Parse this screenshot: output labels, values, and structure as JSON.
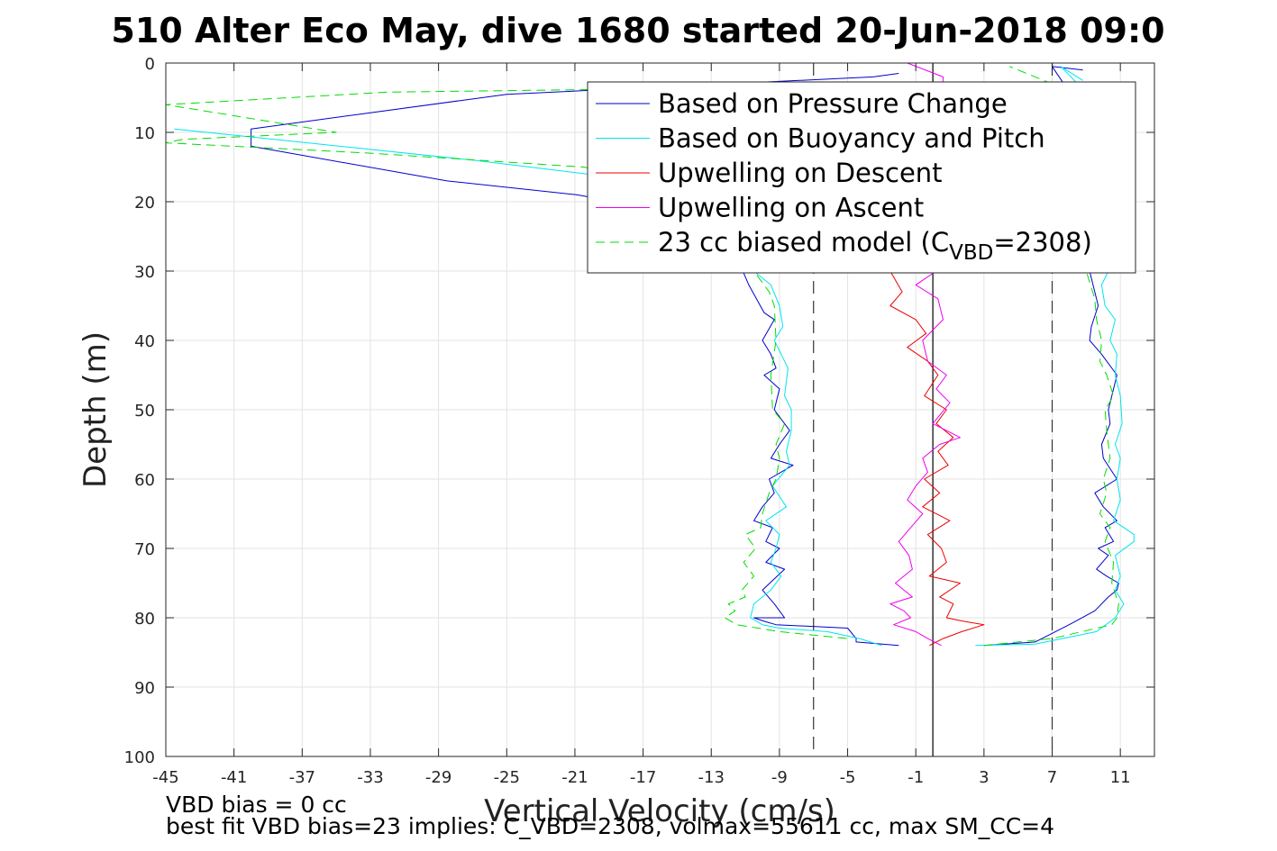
{
  "chart_data": {
    "type": "line",
    "title": "510 Alter Eco May, dive 1680 started 20-Jun-2018 09:0",
    "xlabel": "Vertical Velocity (cm/s)",
    "ylabel": "Depth (m)",
    "xlim": [
      -45,
      13
    ],
    "ylim": [
      0,
      100
    ],
    "y_reversed": true,
    "grid": true,
    "x_ticks": [
      -45,
      -41,
      -37,
      -33,
      -29,
      -25,
      -21,
      -17,
      -13,
      -9,
      -5,
      -1,
      3,
      7,
      11
    ],
    "y_ticks": [
      0,
      10,
      20,
      30,
      40,
      50,
      60,
      70,
      80,
      90,
      100
    ],
    "legend_position": "top-right",
    "legend": [
      {
        "label": "Based on Pressure Change",
        "color": "#0000cc",
        "style": "solid"
      },
      {
        "label": "Based on Buoyancy and Pitch",
        "color": "#00e5ee",
        "style": "solid"
      },
      {
        "label": "Upwelling on Descent",
        "color": "#ee0000",
        "style": "solid"
      },
      {
        "label": "Upwelling on Ascent",
        "color": "#ee00ee",
        "style": "solid"
      },
      {
        "label_main": "23 cc biased model (C",
        "label_sub": "VBD",
        "label_end": "=2308)",
        "color": "#00dd00",
        "style": "dashed"
      }
    ],
    "reference_lines": [
      {
        "x": -7,
        "style": "dashed"
      },
      {
        "x": 0,
        "style": "solid"
      },
      {
        "x": 7,
        "style": "dashed"
      }
    ],
    "series": [
      {
        "key": "pressure_desc",
        "color": "#0000cc",
        "x": [
          -2,
          -3.5,
          -25,
          -40,
          -40,
          -28.5,
          -20.9,
          -14,
          -11.5,
          -10.8,
          -9.9,
          -9.3,
          -10,
          -9.5,
          -9.2,
          -9.9,
          -9,
          -9.3,
          -8.4,
          -9,
          -9.5,
          -8.2,
          -9.6,
          -9.3,
          -10,
          -10.5,
          -9.4,
          -9.8,
          -9,
          -9.8,
          -8.7,
          -10,
          -9.3,
          -8.7,
          -10.5,
          -9.9,
          -9.2,
          -5,
          -4.5,
          -4.5,
          -2
        ],
        "y": [
          1.5,
          2,
          4.5,
          9.5,
          12,
          17,
          19,
          22,
          28,
          32,
          36,
          37,
          40,
          42,
          44,
          45,
          47,
          50,
          53,
          55,
          57,
          58,
          60,
          62,
          64,
          66,
          67,
          69,
          70,
          72,
          73,
          76,
          78,
          80,
          80,
          80.5,
          81,
          81.5,
          83,
          83.5,
          84
        ]
      },
      {
        "key": "pressure_asc",
        "color": "#0000cc",
        "x": [
          3,
          6,
          8,
          9.5,
          10.3,
          10.8,
          10.9,
          10.2,
          9.6,
          10.3,
          9.7,
          10.6,
          10.1,
          10.8,
          10,
          9.5,
          10.8,
          10,
          9.9,
          10.4,
          10.3,
          10.8,
          9.9,
          9.2,
          9.3,
          9.7,
          9.2,
          10.2,
          9.8,
          8.5,
          7,
          8.8
        ],
        "y": [
          84,
          83.5,
          81,
          79,
          77,
          76,
          75,
          74,
          73,
          71,
          70,
          69,
          67,
          66,
          64,
          62,
          60,
          57,
          55,
          52,
          50,
          45,
          42,
          40,
          38,
          35,
          30,
          25,
          20,
          6,
          0.5,
          1
        ]
      },
      {
        "key": "buoyancy_desc",
        "color": "#00e5ee",
        "x": [
          -44.5,
          -27,
          -17,
          -13,
          -12,
          -10.5,
          -9.5,
          -9,
          -8.8,
          -9.3,
          -8.5,
          -8.7,
          -8.3,
          -8.3,
          -8.6,
          -8.4,
          -9.4,
          -8.6,
          -9.8,
          -9,
          -9.2,
          -9.5,
          -8.9,
          -9.5,
          -10,
          -10.5,
          -10.7,
          -10,
          -9,
          -6.2,
          -4.3,
          -3
        ],
        "y": [
          9.5,
          14,
          17,
          20,
          26,
          30,
          32,
          35,
          38,
          40,
          44,
          48,
          50,
          53,
          56,
          58,
          61,
          64,
          66,
          68,
          70,
          72,
          74,
          76,
          77,
          78,
          80,
          81,
          81.5,
          82,
          83,
          84
        ]
      },
      {
        "key": "buoyancy_asc",
        "color": "#00e5ee",
        "x": [
          2.5,
          6,
          9.6,
          10.7,
          11.2,
          10.7,
          11,
          10.7,
          11.8,
          11.8,
          10.6,
          11,
          10.8,
          11,
          10.7,
          11.1,
          11,
          10.7,
          10.8,
          10.4,
          10.7,
          10.1,
          9.9,
          10.3,
          10.1,
          10.2,
          9.8,
          9.6,
          9.5,
          8.5,
          7.5,
          8.8
        ],
        "y": [
          84,
          83.8,
          82,
          80,
          78,
          76,
          74,
          71,
          69,
          68,
          66,
          63,
          60,
          57,
          55,
          52,
          48,
          45,
          42,
          40,
          37,
          35,
          32,
          30,
          25,
          20,
          15,
          10,
          5,
          3,
          0.5,
          2.5
        ]
      },
      {
        "key": "model_desc",
        "color": "#00dd00",
        "dashed": true,
        "x": [
          -7.5,
          -16,
          -32,
          -45,
          -40,
          -35,
          -44,
          -45,
          -33,
          -20.5,
          -16,
          -12.4,
          -10.5,
          -9.6,
          -9.3,
          -9.2,
          -9.5,
          -9.4,
          -8.7,
          -9.2,
          -9,
          -9.2,
          -9.6,
          -10,
          -10.1,
          -11,
          -10.4,
          -11.1,
          -10.5,
          -11.2,
          -11,
          -12,
          -11.6,
          -12.2,
          -11.5,
          -9,
          -5
        ],
        "y": [
          3.5,
          3.7,
          4.2,
          6,
          8,
          10,
          11,
          11.5,
          13,
          15,
          17,
          25,
          30,
          33,
          35,
          40,
          45,
          50,
          52,
          55,
          57,
          60,
          62,
          65,
          67,
          68,
          70,
          72,
          74,
          76,
          77,
          78,
          79,
          80,
          81,
          82,
          83
        ]
      },
      {
        "key": "model_asc",
        "color": "#00dd00",
        "dashed": true,
        "x": [
          3,
          7,
          10.5,
          10.8,
          10.9,
          10.5,
          10.6,
          10.1,
          10.4,
          9.8,
          10.2,
          10,
          10.4,
          10.2,
          10.1,
          10.6,
          10.2,
          9.8,
          9.9,
          9.6,
          9.5,
          9,
          7,
          4.5
        ],
        "y": [
          84,
          83,
          81,
          80,
          78,
          75,
          72,
          69,
          67,
          65,
          62,
          60,
          57,
          53,
          50,
          48,
          45,
          43,
          40,
          37,
          34,
          30,
          3,
          0.5
        ]
      },
      {
        "key": "upwelling_desc",
        "color": "#ee0000",
        "x": [
          -2.5,
          -1.8,
          -2.5,
          -1,
          -0.4,
          -1.5,
          -0.3,
          0.3,
          -0.5,
          0.8,
          0.2,
          1.2,
          0.3,
          0.9,
          -0.5,
          0.4,
          -0.6,
          1,
          -0.3,
          0.5,
          0.8,
          -0.2,
          1.6,
          0.4,
          1.2,
          0.8,
          1.8,
          3,
          1.7,
          0.6,
          -0.2
        ],
        "y": [
          30,
          33,
          35,
          37,
          39,
          41,
          43,
          45,
          48,
          50,
          52,
          54,
          56,
          58,
          60,
          62,
          64,
          66,
          68,
          70,
          72,
          74,
          75,
          77,
          78,
          80,
          80.5,
          81,
          82,
          83,
          84
        ]
      },
      {
        "key": "upwelling_asc",
        "color": "#ee00ee",
        "x": [
          -1.5,
          0.6,
          0.2,
          -1,
          0.3,
          0.6,
          -0.6,
          -0.3,
          0.8,
          0.2,
          1,
          0,
          1.6,
          0.4,
          -0.6,
          -0.3,
          -1,
          -1.5,
          -0.6,
          -1.3,
          -2,
          -1.4,
          -1.2,
          -2.2,
          -1.2,
          -2.5,
          -1.7,
          -1.3,
          -2.3,
          -1,
          -0.3,
          0.5
        ],
        "y": [
          0,
          2,
          30,
          32,
          34,
          37,
          40,
          43,
          45,
          47,
          49,
          52,
          54,
          55,
          57,
          59,
          61,
          63,
          65,
          67,
          69,
          71,
          73,
          75,
          77,
          78,
          79,
          80,
          81,
          82,
          83,
          84
        ]
      }
    ]
  },
  "footer": {
    "line1": "VBD bias = 0 cc",
    "line2": "best fit VBD bias=23 implies: C_VBD=2308, volmax=55611 cc, max SM_CC=4"
  }
}
